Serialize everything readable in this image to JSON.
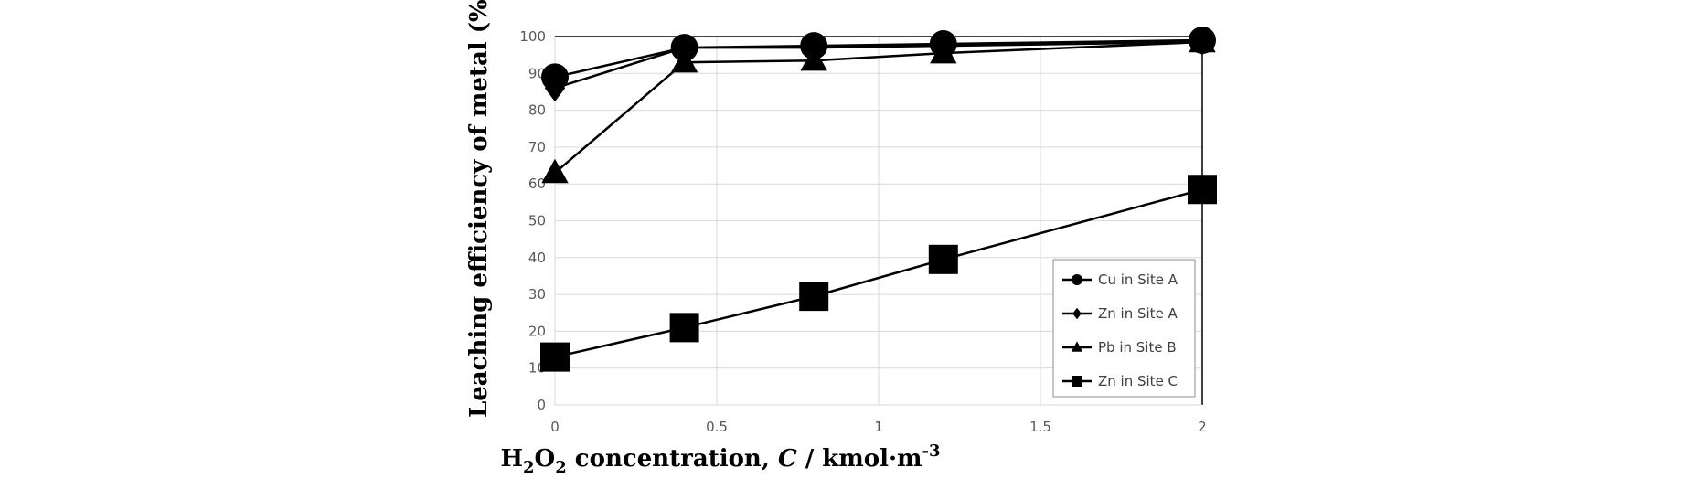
{
  "chart_data": {
    "type": "line",
    "title": "",
    "xlabel": {
      "base": "H",
      "sub1": "2",
      "mid": "O",
      "sub2": "2",
      "rest": " concentration, ",
      "var": "C",
      "unit": " / kmol·m",
      "sup": "-3"
    },
    "ylabel": "Leaching efficiency of metal (%)",
    "xlim": [
      0,
      2
    ],
    "ylim": [
      0,
      100
    ],
    "xticks": [
      0,
      0.5,
      1,
      1.5,
      2
    ],
    "xtick_labels": [
      "0",
      "0.5",
      "1",
      "1.5",
      "2"
    ],
    "yticks": [
      0,
      10,
      20,
      30,
      40,
      50,
      60,
      70,
      80,
      90,
      100
    ],
    "ytick_labels": [
      "0",
      "10",
      "20",
      "30",
      "40",
      "50",
      "60",
      "70",
      "80",
      "90",
      "100"
    ],
    "grid": true,
    "legend_position": "bottom-right",
    "x": [
      0,
      0.4,
      0.8,
      1.2,
      2
    ],
    "series": [
      {
        "name": "Cu in Site A",
        "marker": "circle",
        "values": [
          89,
          97,
          97.5,
          98,
          99
        ]
      },
      {
        "name": "Zn in Site A",
        "marker": "diamond",
        "values": [
          86,
          97,
          97,
          97.5,
          98.5
        ]
      },
      {
        "name": "Pb in Site B",
        "marker": "triangle",
        "values": [
          63,
          93,
          93.5,
          95.5,
          98.5
        ]
      },
      {
        "name": "Zn in Site C",
        "marker": "square",
        "values": [
          13,
          21,
          29.5,
          39.5,
          58.5
        ]
      }
    ]
  }
}
